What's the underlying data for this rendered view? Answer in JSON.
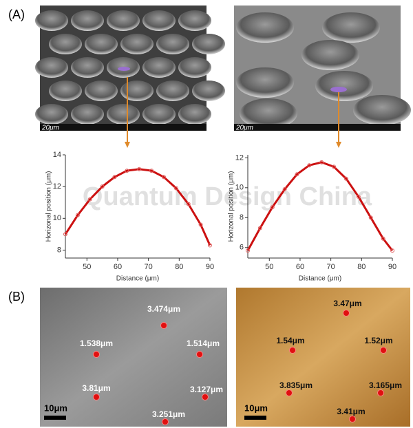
{
  "panels": [
    "(A)",
    "(B)"
  ],
  "sem_images": [
    {
      "scale": "20μm"
    },
    {
      "scale": "20μm"
    }
  ],
  "watermark": "Quantum Design China",
  "chart_data": [
    {
      "type": "line",
      "xlabel": "Distance (μm)",
      "ylabel": "Horizonal position (μm)",
      "x": [
        43,
        47,
        51,
        55,
        59,
        63,
        67,
        71,
        75,
        79,
        83,
        87,
        90
      ],
      "values": [
        9.0,
        10.2,
        11.2,
        12.0,
        12.6,
        13.0,
        13.1,
        13.0,
        12.6,
        11.9,
        10.9,
        9.6,
        8.3
      ],
      "color": "#cc1111",
      "xlim": [
        43,
        90
      ],
      "ylim": [
        7.5,
        14
      ],
      "xticks": [
        50,
        60,
        70,
        80,
        90
      ],
      "yticks": [
        8,
        10,
        12,
        14
      ]
    },
    {
      "type": "line",
      "xlabel": "Distance (μm)",
      "ylabel": "Horizonal position (μm)",
      "x": [
        43,
        47,
        51,
        55,
        59,
        63,
        67,
        71,
        75,
        79,
        83,
        87,
        90
      ],
      "values": [
        5.8,
        7.3,
        8.7,
        9.9,
        10.9,
        11.5,
        11.7,
        11.4,
        10.6,
        9.4,
        8.0,
        6.6,
        5.8
      ],
      "color": "#cc1111",
      "xlim": [
        43,
        90
      ],
      "ylim": [
        5.3,
        12.2
      ],
      "xticks": [
        50,
        60,
        70,
        80,
        90
      ],
      "yticks": [
        6,
        8,
        10,
        12
      ]
    }
  ],
  "face_images": [
    {
      "scale": "10μm",
      "points": [
        "3.474μm",
        "1.538μm",
        "1.514μm",
        "3.81μm",
        "3.127μm",
        "3.251μm"
      ]
    },
    {
      "scale": "10μm",
      "points": [
        "3.47μm",
        "1.54μm",
        "1.52μm",
        "3.835μm",
        "3.165μm",
        "3.41μm"
      ]
    }
  ]
}
